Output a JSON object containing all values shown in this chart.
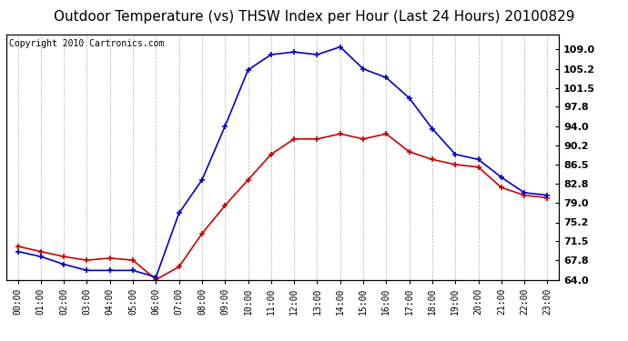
{
  "title": "Outdoor Temperature (vs) THSW Index per Hour (Last 24 Hours) 20100829",
  "copyright": "Copyright 2010 Cartronics.com",
  "x_labels": [
    "00:00",
    "01:00",
    "02:00",
    "03:00",
    "04:00",
    "05:00",
    "06:00",
    "07:00",
    "08:00",
    "09:00",
    "10:00",
    "11:00",
    "12:00",
    "13:00",
    "14:00",
    "15:00",
    "16:00",
    "17:00",
    "18:00",
    "19:00",
    "20:00",
    "21:00",
    "22:00",
    "23:00"
  ],
  "temp_data": [
    70.5,
    69.5,
    68.5,
    67.8,
    68.2,
    67.8,
    64.0,
    66.5,
    73.0,
    78.5,
    83.5,
    88.5,
    91.5,
    91.5,
    92.5,
    91.5,
    92.5,
    89.0,
    87.5,
    86.5,
    86.0,
    82.0,
    80.5,
    80.0
  ],
  "thsw_data": [
    69.5,
    68.5,
    67.0,
    65.8,
    65.8,
    65.8,
    64.5,
    77.0,
    83.5,
    94.0,
    105.0,
    108.0,
    108.5,
    108.0,
    109.5,
    105.2,
    103.5,
    99.5,
    93.5,
    88.5,
    87.5,
    84.0,
    81.0,
    80.5
  ],
  "temp_color": "#cc0000",
  "thsw_color": "#0000cc",
  "bg_color": "#ffffff",
  "plot_bg_color": "#ffffff",
  "grid_color": "#aaaaaa",
  "ylim": [
    64.0,
    112.0
  ],
  "yticks_right": [
    64.0,
    67.8,
    71.5,
    75.2,
    79.0,
    82.8,
    86.5,
    90.2,
    94.0,
    97.8,
    101.5,
    105.2,
    109.0
  ],
  "title_fontsize": 11,
  "copyright_fontsize": 7
}
